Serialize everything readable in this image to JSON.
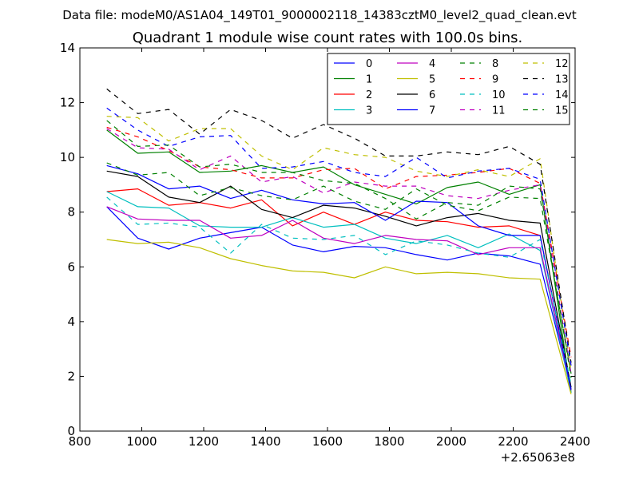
{
  "chart_data": {
    "type": "line",
    "suptitle": "Data file: modeM0/AS1A04_149T01_9000002118_14383cztM0_level2_quad_clean.evt",
    "title": "Quadrant 1 module wise count rates with 100.0s bins.",
    "xlabel": "",
    "ylabel": "",
    "x_offset_label": "+2.65063e8",
    "xlim": [
      800,
      2400
    ],
    "ylim": [
      0,
      14
    ],
    "xticks": [
      800,
      1000,
      1200,
      1400,
      1600,
      1800,
      2000,
      2200,
      2400
    ],
    "yticks": [
      0,
      2,
      4,
      6,
      8,
      10,
      12,
      14
    ],
    "grid": false,
    "legend_position": "top-right",
    "legend_columns": 4,
    "x": [
      887,
      987,
      1087,
      1187,
      1287,
      1387,
      1487,
      1587,
      1687,
      1787,
      1887,
      1987,
      2087,
      2187,
      2287,
      2387
    ],
    "series": [
      {
        "name": "0",
        "color": "#0000ff",
        "dash": "solid",
        "values": [
          8.2,
          7.05,
          6.65,
          7.05,
          7.25,
          7.45,
          6.8,
          6.55,
          6.75,
          6.7,
          6.45,
          6.25,
          6.5,
          6.4,
          6.1,
          1.55
        ]
      },
      {
        "name": "1",
        "color": "#008000",
        "dash": "solid",
        "values": [
          11.0,
          10.15,
          10.2,
          9.45,
          9.5,
          9.7,
          9.45,
          9.65,
          9.0,
          8.65,
          8.3,
          8.9,
          9.1,
          8.65,
          9.0,
          1.4
        ]
      },
      {
        "name": "2",
        "color": "#ff0000",
        "dash": "solid",
        "values": [
          8.75,
          8.85,
          8.25,
          8.35,
          8.15,
          8.45,
          7.5,
          8.0,
          7.55,
          8.0,
          7.7,
          7.65,
          7.45,
          7.5,
          7.15,
          1.5
        ]
      },
      {
        "name": "3",
        "color": "#00bfbf",
        "dash": "solid",
        "values": [
          8.75,
          8.2,
          8.15,
          7.5,
          7.45,
          7.45,
          7.8,
          7.45,
          7.55,
          7.05,
          6.85,
          7.15,
          6.7,
          7.2,
          6.6,
          1.4
        ]
      },
      {
        "name": "4",
        "color": "#bf00bf",
        "dash": "solid",
        "values": [
          8.2,
          7.75,
          7.7,
          7.7,
          7.05,
          7.15,
          7.7,
          7.05,
          6.85,
          7.15,
          7.0,
          6.95,
          6.45,
          6.7,
          6.7,
          1.5
        ]
      },
      {
        "name": "5",
        "color": "#bfbf00",
        "dash": "solid",
        "values": [
          7.0,
          6.85,
          6.9,
          6.7,
          6.3,
          6.05,
          5.85,
          5.8,
          5.6,
          6.0,
          5.75,
          5.8,
          5.75,
          5.6,
          5.55,
          1.35
        ]
      },
      {
        "name": "6",
        "color": "#000000",
        "dash": "solid",
        "values": [
          9.5,
          9.3,
          8.55,
          8.35,
          8.95,
          8.1,
          7.8,
          8.25,
          8.15,
          7.85,
          7.5,
          7.8,
          7.95,
          7.7,
          7.6,
          1.6
        ]
      },
      {
        "name": "7",
        "color": "#0000ff",
        "dash": "solid",
        "values": [
          9.7,
          9.4,
          8.85,
          8.95,
          8.5,
          8.8,
          8.45,
          8.3,
          8.35,
          7.7,
          8.4,
          8.35,
          7.5,
          7.15,
          7.15,
          1.5
        ]
      },
      {
        "name": "8",
        "color": "#008000",
        "dash": "dashed",
        "values": [
          9.8,
          9.35,
          9.45,
          8.6,
          8.9,
          8.6,
          8.45,
          8.95,
          8.4,
          8.1,
          8.85,
          8.25,
          8.05,
          8.55,
          8.5,
          2.1
        ]
      },
      {
        "name": "9",
        "color": "#ff0000",
        "dash": "dashed",
        "values": [
          11.1,
          10.75,
          10.25,
          9.65,
          9.55,
          9.25,
          9.25,
          9.55,
          9.6,
          8.85,
          9.3,
          9.35,
          9.45,
          9.6,
          9.05,
          2.7
        ]
      },
      {
        "name": "10",
        "color": "#00bfbf",
        "dash": "dashed",
        "values": [
          8.55,
          7.55,
          7.6,
          7.45,
          6.5,
          7.55,
          7.05,
          7.0,
          7.15,
          6.45,
          6.95,
          6.8,
          6.5,
          6.35,
          7.0,
          1.7
        ]
      },
      {
        "name": "11",
        "color": "#bf00bf",
        "dash": "dashed",
        "values": [
          11.05,
          10.35,
          10.3,
          9.55,
          10.05,
          9.1,
          9.3,
          8.7,
          9.1,
          8.95,
          8.95,
          8.6,
          8.5,
          8.8,
          9.0,
          2.1
        ]
      },
      {
        "name": "12",
        "color": "#bfbf00",
        "dash": "dashed",
        "values": [
          11.5,
          11.45,
          10.6,
          11.05,
          11.05,
          10.05,
          9.55,
          10.35,
          10.1,
          10.0,
          9.5,
          9.3,
          9.55,
          9.3,
          9.95,
          2.2
        ]
      },
      {
        "name": "13",
        "color": "#000000",
        "dash": "dashed",
        "values": [
          12.5,
          11.6,
          11.75,
          10.85,
          11.75,
          11.35,
          10.7,
          11.2,
          10.7,
          10.05,
          10.05,
          10.2,
          10.1,
          10.4,
          9.75,
          2.5
        ]
      },
      {
        "name": "14",
        "color": "#0000ff",
        "dash": "dashed",
        "values": [
          11.8,
          11.0,
          10.4,
          10.75,
          10.8,
          9.6,
          9.65,
          9.85,
          9.45,
          9.3,
          10.0,
          9.25,
          9.5,
          9.6,
          9.2,
          2.4
        ]
      },
      {
        "name": "15",
        "color": "#008000",
        "dash": "dashed",
        "values": [
          11.35,
          10.4,
          10.45,
          9.65,
          9.75,
          9.45,
          9.45,
          9.15,
          9.05,
          8.5,
          7.75,
          8.35,
          8.25,
          8.95,
          8.85,
          1.95
        ]
      }
    ]
  }
}
